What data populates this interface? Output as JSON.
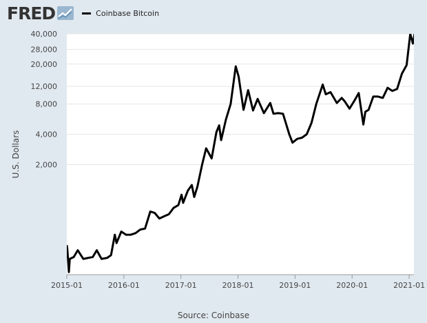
{
  "header": {
    "logo_text": "FRED",
    "logo_icon": "chart-line-icon"
  },
  "chart_data": {
    "type": "line",
    "title": "",
    "xlabel": "",
    "ylabel": "U.S. Dollars",
    "yscale": "log",
    "ylim": [
      160,
      40000
    ],
    "xlim": [
      "2015-01",
      "2021-02"
    ],
    "grid": "horizontal",
    "legend_position": "top-left",
    "y_ticks": [
      {
        "value": 40000,
        "label": "40,000"
      },
      {
        "value": 28000,
        "label": "28,000"
      },
      {
        "value": 20000,
        "label": "20,000"
      },
      {
        "value": 12000,
        "label": "12,000"
      },
      {
        "value": 8000,
        "label": "8,000"
      },
      {
        "value": 4000,
        "label": "4,000"
      },
      {
        "value": 2000,
        "label": "2,000"
      }
    ],
    "x_ticks": [
      "2015-01",
      "2016-01",
      "2017-01",
      "2018-01",
      "2019-01",
      "2020-01",
      "2021-01"
    ],
    "series": [
      {
        "name": "Coinbase Bitcoin",
        "color": "#000000",
        "x": [
          "2015-01-01",
          "2015-01-05",
          "2015-01-14",
          "2015-01-20",
          "2015-02-15",
          "2015-03-10",
          "2015-04-15",
          "2015-05-15",
          "2015-06-15",
          "2015-07-10",
          "2015-08-10",
          "2015-09-15",
          "2015-10-10",
          "2015-11-04",
          "2015-11-15",
          "2015-12-15",
          "2016-01-15",
          "2016-02-15",
          "2016-03-15",
          "2016-04-15",
          "2016-05-15",
          "2016-06-18",
          "2016-07-15",
          "2016-08-15",
          "2016-09-15",
          "2016-10-15",
          "2016-11-15",
          "2016-12-15",
          "2017-01-05",
          "2017-01-15",
          "2017-02-15",
          "2017-03-10",
          "2017-03-25",
          "2017-04-15",
          "2017-05-15",
          "2017-06-10",
          "2017-07-15",
          "2017-08-15",
          "2017-09-02",
          "2017-09-15",
          "2017-10-15",
          "2017-11-15",
          "2017-12-17",
          "2018-01-05",
          "2018-02-06",
          "2018-03-05",
          "2018-04-06",
          "2018-05-05",
          "2018-06-15",
          "2018-07-25",
          "2018-08-15",
          "2018-09-15",
          "2018-10-15",
          "2018-11-25",
          "2018-12-15",
          "2019-01-15",
          "2019-02-15",
          "2019-03-15",
          "2019-04-15",
          "2019-05-15",
          "2019-06-26",
          "2019-07-15",
          "2019-08-15",
          "2019-09-25",
          "2019-10-26",
          "2019-11-15",
          "2019-12-15",
          "2020-01-15",
          "2020-02-13",
          "2020-03-12",
          "2020-03-25",
          "2020-04-15",
          "2020-05-15",
          "2020-06-15",
          "2020-07-15",
          "2020-08-15",
          "2020-09-15",
          "2020-10-15",
          "2020-11-15",
          "2020-12-15",
          "2021-01-08",
          "2021-01-25",
          "2021-02-10",
          "2021-02-21"
        ],
        "values": [
          315,
          280,
          170,
          230,
          240,
          280,
          230,
          235,
          240,
          280,
          230,
          235,
          250,
          400,
          330,
          430,
          400,
          400,
          415,
          450,
          460,
          680,
          660,
          580,
          610,
          640,
          740,
          790,
          1000,
          830,
          1100,
          1250,
          950,
          1200,
          2000,
          2900,
          2300,
          4200,
          4900,
          3500,
          5600,
          8000,
          19000,
          15000,
          7000,
          11000,
          6900,
          9000,
          6500,
          8200,
          6400,
          6500,
          6400,
          4000,
          3300,
          3600,
          3700,
          4000,
          5200,
          8000,
          12500,
          10000,
          10500,
          8200,
          9200,
          8500,
          7200,
          8600,
          10300,
          5000,
          6700,
          7000,
          9500,
          9500,
          9200,
          11600,
          10800,
          11300,
          16000,
          19500,
          40000,
          32000,
          44000,
          57000
        ]
      }
    ]
  },
  "source_text": "Source: Coinbase"
}
